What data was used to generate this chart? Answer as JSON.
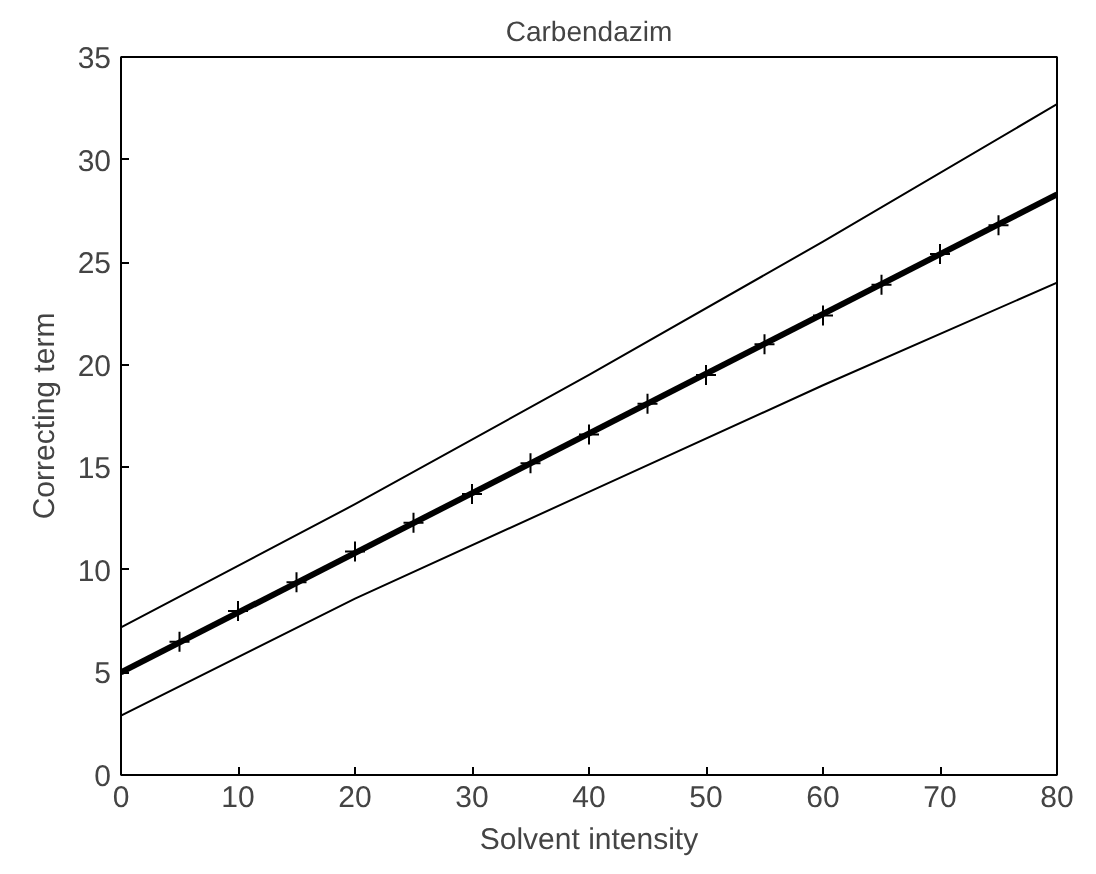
{
  "chart_data": {
    "type": "line",
    "title": "Carbendazim",
    "xlabel": "Solvent intensity",
    "ylabel": "Correcting term",
    "xlim": [
      0,
      80
    ],
    "ylim": [
      0,
      35
    ],
    "xticks": [
      0,
      10,
      20,
      30,
      40,
      50,
      60,
      70,
      80
    ],
    "yticks": [
      0,
      5,
      10,
      15,
      20,
      25,
      30,
      35
    ],
    "grid": false,
    "series": [
      {
        "color": "#000000",
        "x": [
          0,
          20,
          40,
          60,
          80
        ],
        "values": [
          7.2,
          13.2,
          19.5,
          26,
          32.7
        ]
      },
      {
        "color": "#000000",
        "x": [
          0,
          20,
          40,
          60,
          80
        ],
        "values": [
          2.9,
          8.6,
          13.8,
          19,
          24
        ]
      },
      {
        "color": "#000000",
        "x": [
          0,
          80
        ],
        "values": [
          5,
          28.3
        ]
      },
      {
        "type": "scatter",
        "color": "#000000",
        "marker": "cross",
        "x": [
          5,
          10,
          15,
          20,
          25,
          30,
          35,
          40,
          45,
          50,
          55,
          60,
          65,
          70,
          75
        ],
        "values": [
          6.5,
          8,
          9.4,
          10.9,
          12.3,
          13.7,
          15.2,
          16.6,
          18.1,
          19.5,
          21,
          22.4,
          23.9,
          25.4,
          26.8
        ]
      }
    ]
  }
}
